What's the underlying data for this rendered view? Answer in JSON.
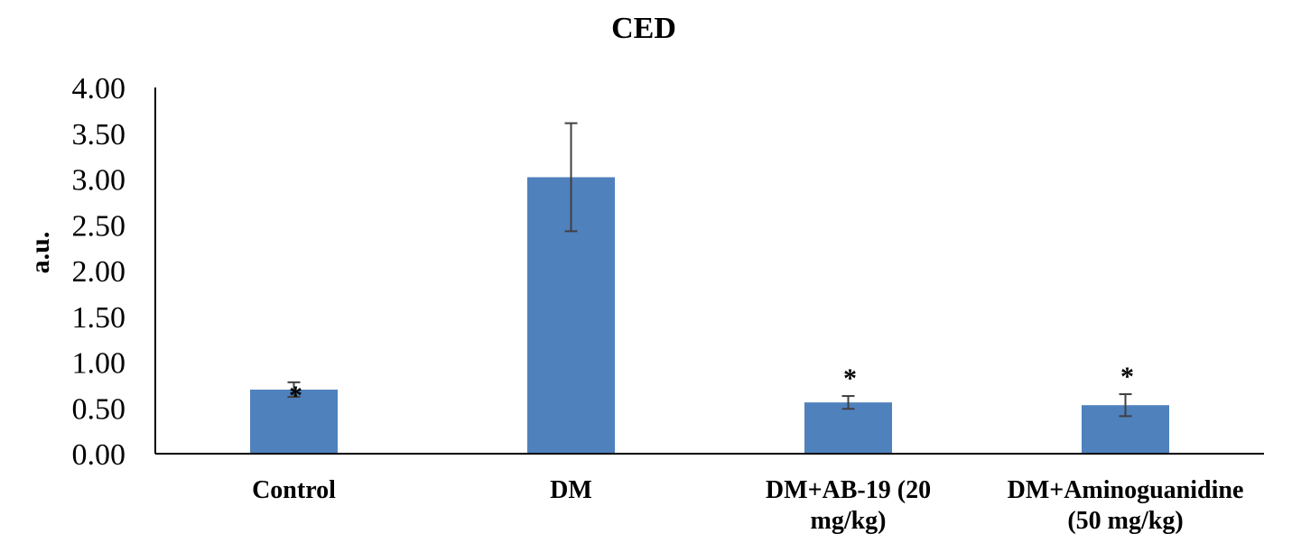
{
  "chart_data": {
    "type": "bar",
    "title": "CED",
    "xlabel": "",
    "ylabel": "a.u.",
    "ylim": [
      0,
      4
    ],
    "yticks": [
      0,
      0.5,
      1,
      1.5,
      2,
      2.5,
      3,
      3.5,
      4
    ],
    "ytick_labels": [
      "0.00",
      "0.50",
      "1.00",
      "1.50",
      "2.00",
      "2.50",
      "3.00",
      "3.50",
      "4.00"
    ],
    "categories": [
      [
        "Control"
      ],
      [
        "DM"
      ],
      [
        "DM+AB-19 (20",
        "mg/kg)"
      ],
      [
        "DM+Aminoguanidine",
        "(50 mg/kg)"
      ]
    ],
    "values": [
      0.7,
      3.02,
      0.56,
      0.53
    ],
    "errors": [
      0.08,
      0.59,
      0.07,
      0.12
    ],
    "annotations": [
      "*",
      "",
      "*",
      "*"
    ],
    "bar_color": "#4f81bd",
    "error_color": "#404040",
    "axis_color": "#000000",
    "grid": false,
    "legend": "none"
  }
}
